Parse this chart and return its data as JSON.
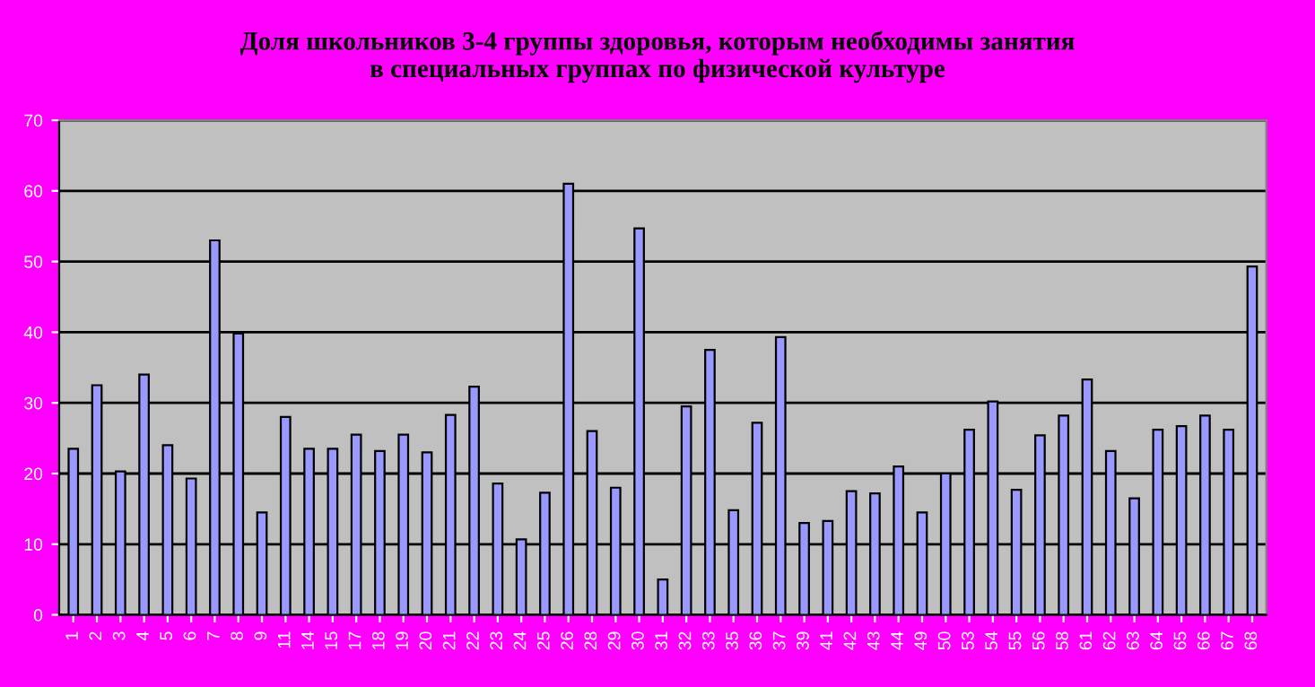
{
  "chart_data": {
    "type": "bar",
    "title": "Доля школьников 3-4 группы здоровья, которым необходимы занятия\nв специальных группах по физической культуре",
    "categories": [
      "1",
      "2",
      "3",
      "4",
      "5",
      "6",
      "7",
      "8",
      "9",
      "11",
      "14",
      "15",
      "17",
      "18",
      "19",
      "20",
      "21",
      "22",
      "23",
      "24",
      "25",
      "26",
      "28",
      "29",
      "30",
      "31",
      "32",
      "33",
      "35",
      "36",
      "37",
      "39",
      "41",
      "42",
      "43",
      "44",
      "49",
      "50",
      "53",
      "54",
      "55",
      "56",
      "58",
      "61",
      "62",
      "63",
      "64",
      "65",
      "66",
      "67",
      "68"
    ],
    "values": [
      23.5,
      32.5,
      20.3,
      34,
      24,
      19.3,
      53,
      39.8,
      14.5,
      28,
      23.5,
      23.5,
      25.5,
      23.2,
      25.5,
      23,
      28.3,
      32.3,
      18.6,
      10.7,
      17.3,
      61,
      26,
      18,
      54.7,
      5,
      29.5,
      37.5,
      14.8,
      27.2,
      39.3,
      13,
      13.3,
      17.5,
      17.2,
      21,
      14.5,
      20,
      26.2,
      30.2,
      17.7,
      25.4,
      28.2,
      33.3,
      23.2,
      16.5,
      26.2,
      26.7,
      28.2,
      26.2,
      49.3
    ],
    "color": "#9999ff",
    "ylim": [
      0,
      70
    ],
    "yticks": [
      0,
      10,
      20,
      30,
      40,
      50,
      60,
      70
    ],
    "grid": "y"
  }
}
